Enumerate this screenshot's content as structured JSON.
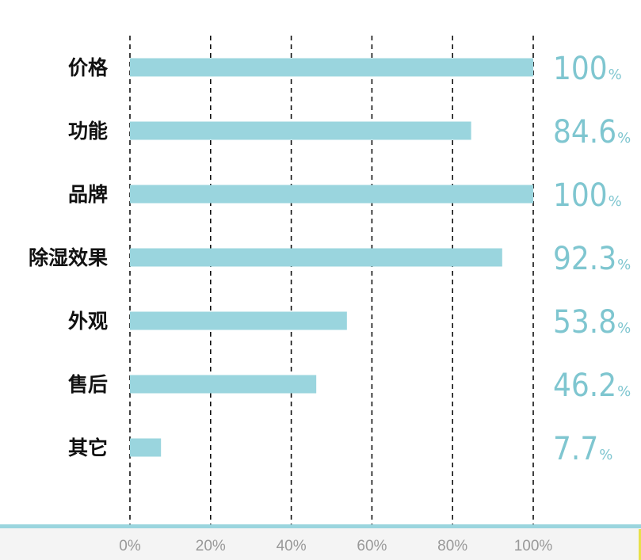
{
  "chart_data": {
    "type": "bar",
    "orientation": "horizontal",
    "categories": [
      "价格",
      "功能",
      "品牌",
      "除湿效果",
      "外观",
      "售后",
      "其它"
    ],
    "values": [
      100,
      84.6,
      100,
      92.3,
      53.8,
      46.2,
      7.7
    ],
    "value_labels": [
      "100",
      "84.6",
      "100",
      "92.3",
      "53.8",
      "46.2",
      "7.7"
    ],
    "value_unit": "%",
    "xlim": [
      0,
      100
    ],
    "x_ticks": [
      "0%",
      "20%",
      "40%",
      "60%",
      "80%",
      "100%"
    ],
    "grid": "vertical-dashed",
    "legend": "none",
    "title": "",
    "xlabel": "",
    "ylabel": ""
  },
  "colors": {
    "bar": "#9ad5de",
    "value_text": "#7fc6d0",
    "grid": "#111111",
    "axis_line": "#9ad5de",
    "footer_bg": "#f4f4f4",
    "tick_text": "#999999"
  }
}
